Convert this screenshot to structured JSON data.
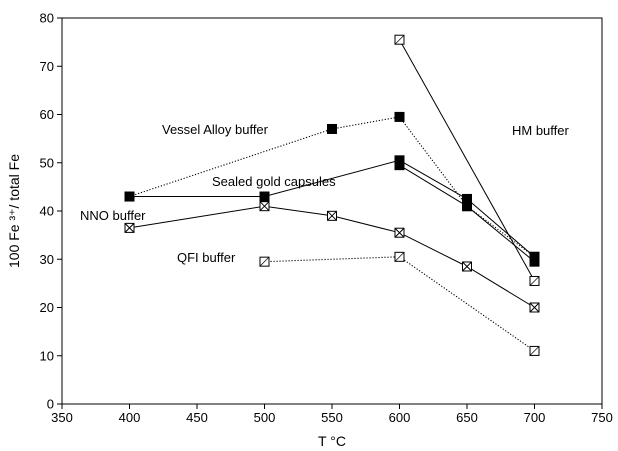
{
  "chart_data": {
    "type": "line",
    "xlabel": "T °C",
    "ylabel": "100 Fe ³⁺/ total Fe",
    "xlim": [
      350,
      750
    ],
    "ylim": [
      0,
      80
    ],
    "x_ticks": [
      350,
      400,
      450,
      500,
      550,
      600,
      650,
      700,
      750
    ],
    "y_ticks": [
      0,
      10,
      20,
      30,
      40,
      50,
      60,
      70,
      80
    ],
    "grid": false,
    "annotations": [
      "Vessel Alloy buffer",
      "HM buffer",
      "Sealed gold capsules",
      "NNO buffer",
      "QFI buffer"
    ],
    "series": [
      {
        "marker": "filled-square",
        "line": "solid",
        "points": [
          [
            400,
            43.0
          ],
          [
            500,
            43.0
          ],
          [
            600,
            50.5
          ],
          [
            650,
            42.5
          ],
          [
            700,
            30.5
          ]
        ]
      },
      {
        "marker": "filled-square",
        "line": "solid",
        "points": [
          [
            600,
            49.5
          ],
          [
            650,
            41.0
          ],
          [
            700,
            29.5
          ]
        ]
      },
      {
        "marker": "filled-square",
        "line": "dotted",
        "points": [
          [
            400,
            43.0
          ],
          [
            550,
            57.0
          ],
          [
            600,
            59.5
          ],
          [
            650,
            41.0
          ],
          [
            700,
            30.5
          ]
        ]
      },
      {
        "marker": "crossed-square",
        "line": "solid",
        "points": [
          [
            400,
            36.5
          ],
          [
            500,
            41.0
          ],
          [
            550,
            39.0
          ],
          [
            600,
            35.5
          ],
          [
            650,
            28.5
          ],
          [
            700,
            20.0
          ]
        ]
      },
      {
        "marker": "open-square",
        "line": "solid",
        "points": [
          [
            600,
            75.5
          ],
          [
            700,
            25.5
          ]
        ]
      },
      {
        "marker": "open-square",
        "line": "dotted",
        "points": [
          [
            500,
            29.5
          ],
          [
            600,
            30.5
          ],
          [
            700,
            11.0
          ]
        ]
      }
    ]
  }
}
